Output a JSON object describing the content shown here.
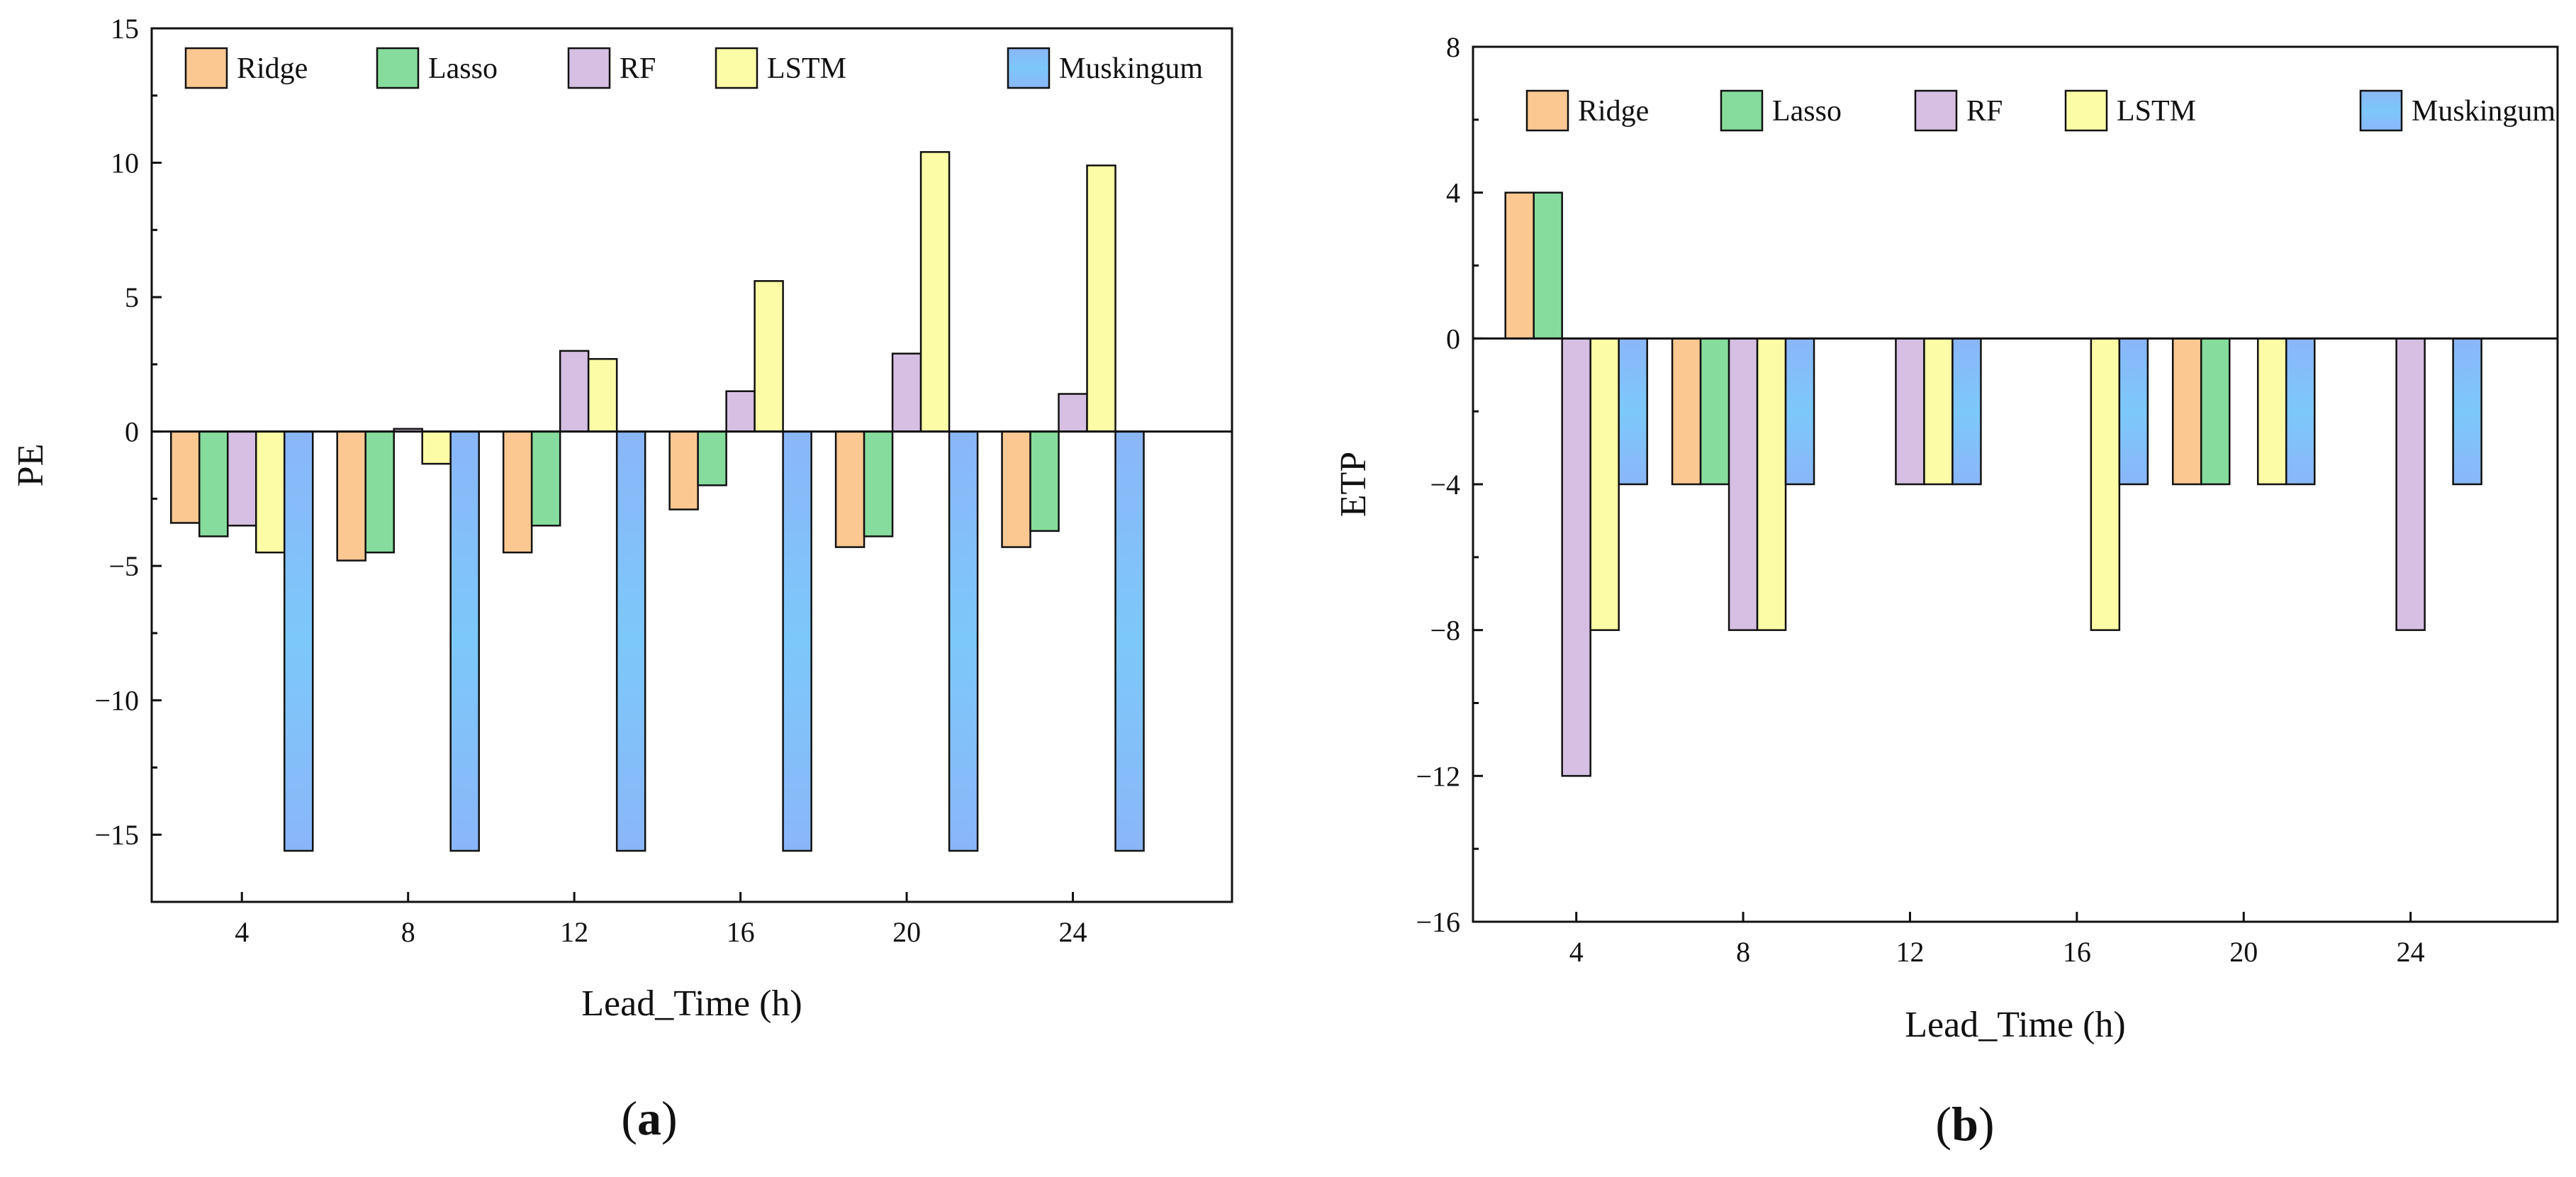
{
  "chart_data": [
    {
      "panel_label": "a",
      "type": "bar",
      "xlabel": "Lead_Time (h)",
      "ylabel": "PE",
      "ylim": [
        -17.5,
        15
      ],
      "yticks": [
        15,
        10,
        5,
        0,
        -5,
        -10,
        -15
      ],
      "ytick_labels": [
        "15",
        "10",
        "5",
        "0",
        "−5",
        "−10",
        "−15"
      ],
      "categories": [
        "4",
        "8",
        "12",
        "16",
        "20",
        "24"
      ],
      "legend_position": "top",
      "series": [
        {
          "name": "Ridge",
          "values": [
            -3.4,
            -4.8,
            -4.5,
            -2.9,
            -4.3,
            -4.3
          ]
        },
        {
          "name": "Lasso",
          "values": [
            -3.9,
            -4.5,
            -3.5,
            -2.0,
            -3.9,
            -3.7
          ]
        },
        {
          "name": "RF",
          "values": [
            -3.5,
            0.1,
            3.0,
            1.5,
            2.9,
            1.4
          ]
        },
        {
          "name": "LSTM",
          "values": [
            -4.5,
            -1.2,
            2.7,
            5.6,
            10.4,
            9.9
          ]
        },
        {
          "name": "Muskingum",
          "values": [
            -15.6,
            -15.6,
            -15.6,
            -15.6,
            -15.6,
            -15.6
          ]
        }
      ]
    },
    {
      "panel_label": "b",
      "type": "bar",
      "xlabel": "Lead_Time (h)",
      "ylabel": "ETP",
      "ylim": [
        -16,
        8
      ],
      "yticks": [
        8,
        4,
        0,
        -4,
        -8,
        -12,
        -16
      ],
      "ytick_labels": [
        "8",
        "4",
        "0",
        "−4",
        "−8",
        "−12",
        "−16"
      ],
      "categories": [
        "4",
        "8",
        "12",
        "16",
        "20",
        "24"
      ],
      "legend_position": "top",
      "series": [
        {
          "name": "Ridge",
          "values": [
            4,
            -4,
            0,
            0,
            -4,
            0
          ]
        },
        {
          "name": "Lasso",
          "values": [
            4,
            -4,
            0,
            0,
            -4,
            0
          ]
        },
        {
          "name": "RF",
          "values": [
            -12,
            -8,
            -4,
            0,
            0,
            -8
          ]
        },
        {
          "name": "LSTM",
          "values": [
            -8,
            -8,
            -4,
            -8,
            -4,
            0
          ]
        },
        {
          "name": "Muskingum",
          "values": [
            -4,
            -4,
            -4,
            -4,
            -4,
            -4
          ]
        }
      ]
    }
  ],
  "series_colors": {
    "Ridge": "#fcc892",
    "Lasso": "#86dc9c",
    "RF": "#d6bfe2",
    "LSTM": "#fcfca6",
    "Muskingum": "#8cc0f8"
  },
  "panel_captions": [
    "(a)",
    "(b)"
  ]
}
